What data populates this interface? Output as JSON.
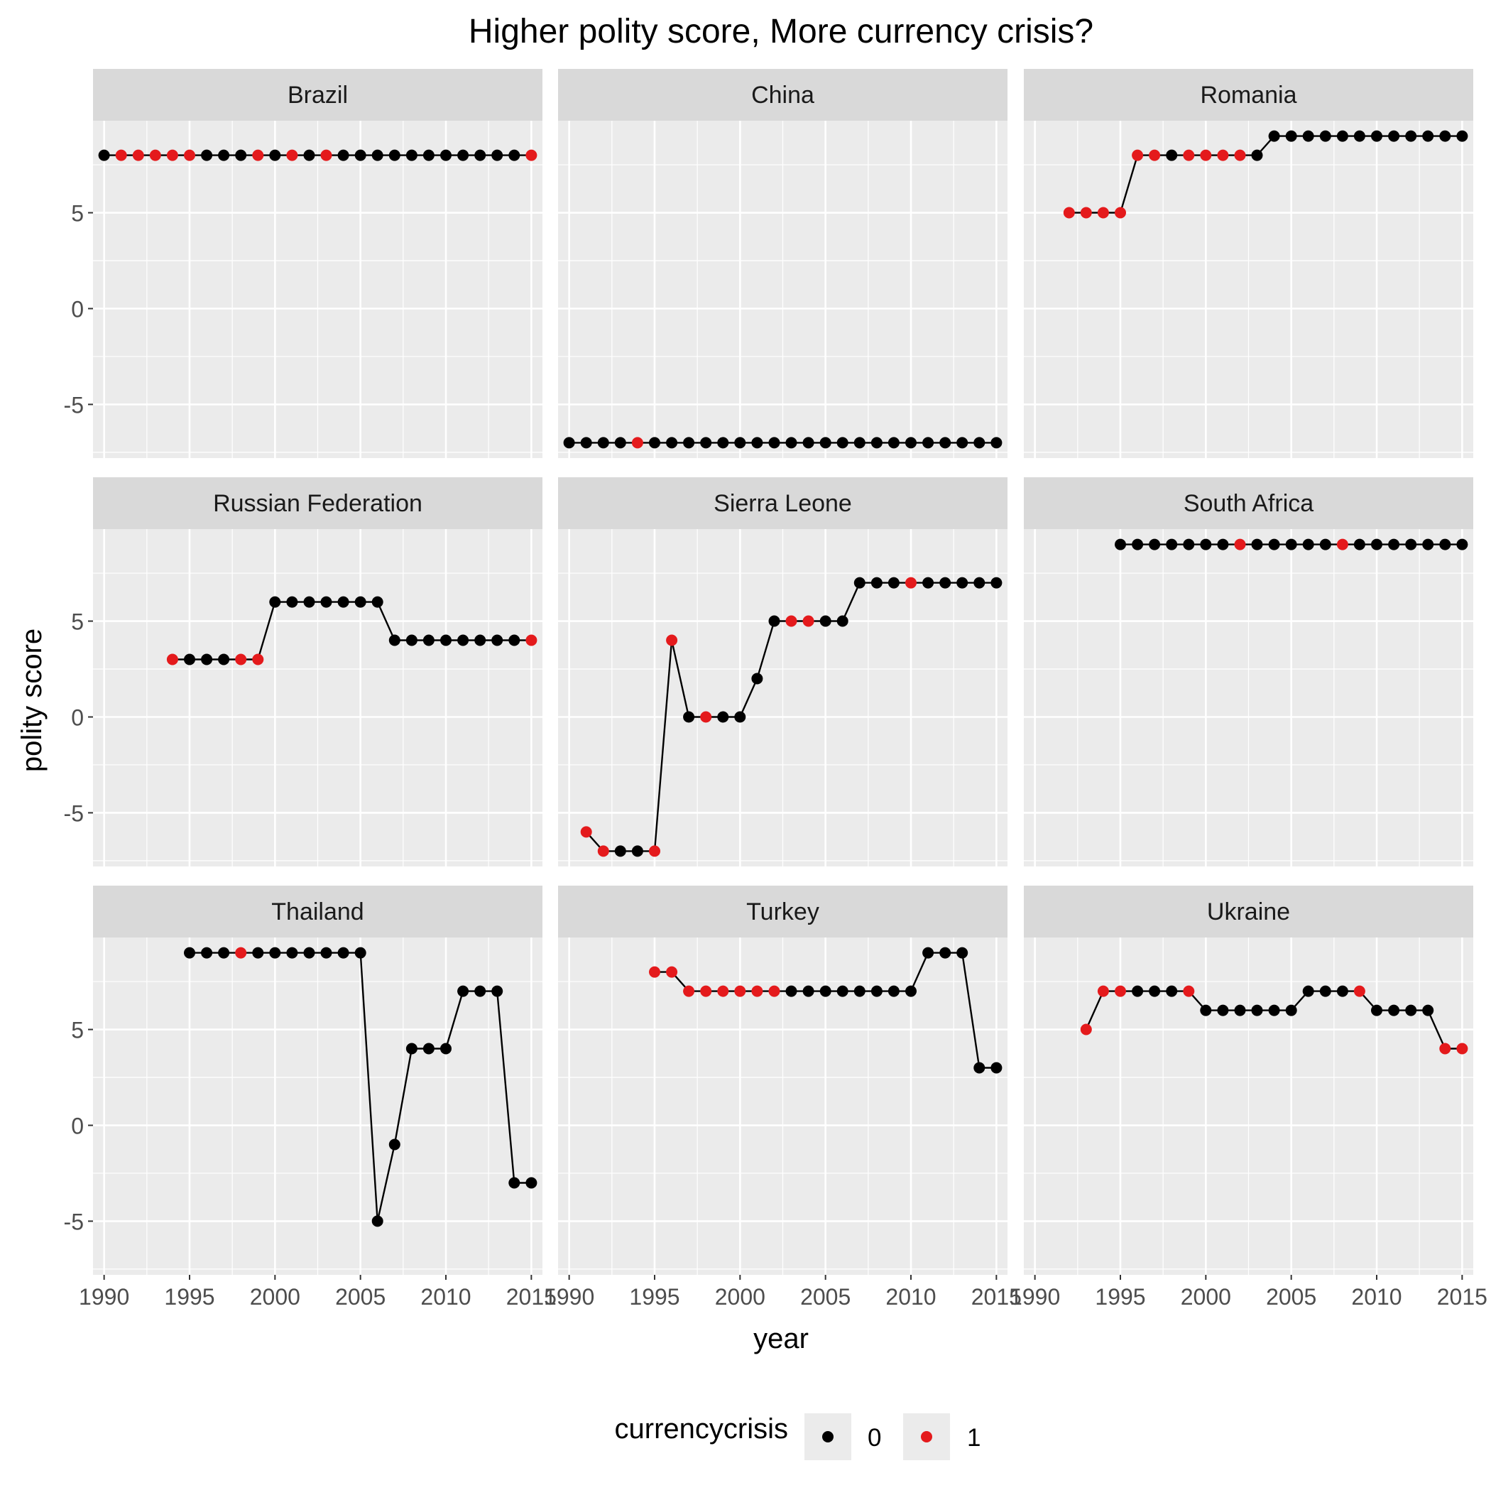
{
  "chart_data": {
    "type": "line",
    "title": "Higher polity score, More currency crisis?",
    "xlabel": "year",
    "ylabel": "polity score",
    "x_ticks": [
      1990,
      1995,
      2000,
      2005,
      2010,
      2015
    ],
    "y_ticks": [
      5,
      0,
      -5
    ],
    "xlim": [
      1989.35,
      2015.65
    ],
    "ylim": [
      -7.8,
      9.8
    ],
    "grid": true,
    "legend": {
      "title": "currencycrisis",
      "position": "bottom",
      "entries": [
        {
          "label": "0",
          "color": "#000000"
        },
        {
          "label": "1",
          "color": "#e41a1c"
        }
      ]
    },
    "panels": [
      {
        "name": "Brazil",
        "start_year": 1990,
        "scores": [
          8,
          8,
          8,
          8,
          8,
          8,
          8,
          8,
          8,
          8,
          8,
          8,
          8,
          8,
          8,
          8,
          8,
          8,
          8,
          8,
          8,
          8,
          8,
          8,
          8,
          8
        ],
        "crisis": [
          0,
          1,
          1,
          1,
          1,
          1,
          0,
          0,
          0,
          1,
          0,
          1,
          0,
          1,
          0,
          0,
          0,
          0,
          0,
          0,
          0,
          0,
          0,
          0,
          0,
          1
        ]
      },
      {
        "name": "China",
        "start_year": 1990,
        "scores": [
          -7,
          -7,
          -7,
          -7,
          -7,
          -7,
          -7,
          -7,
          -7,
          -7,
          -7,
          -7,
          -7,
          -7,
          -7,
          -7,
          -7,
          -7,
          -7,
          -7,
          -7,
          -7,
          -7,
          -7,
          -7,
          -7
        ],
        "crisis": [
          0,
          0,
          0,
          0,
          1,
          0,
          0,
          0,
          0,
          0,
          0,
          0,
          0,
          0,
          0,
          0,
          0,
          0,
          0,
          0,
          0,
          0,
          0,
          0,
          0,
          0
        ]
      },
      {
        "name": "Romania",
        "start_year": 1992,
        "scores": [
          5,
          5,
          5,
          5,
          8,
          8,
          8,
          8,
          8,
          8,
          8,
          8,
          9,
          9,
          9,
          9,
          9,
          9,
          9,
          9,
          9,
          9,
          9,
          9
        ],
        "crisis": [
          1,
          1,
          1,
          1,
          1,
          1,
          0,
          1,
          1,
          1,
          1,
          0,
          0,
          0,
          0,
          0,
          0,
          0,
          0,
          0,
          0,
          0,
          0,
          0
        ]
      },
      {
        "name": "Russian Federation",
        "start_year": 1994,
        "scores": [
          3,
          3,
          3,
          3,
          3,
          3,
          6,
          6,
          6,
          6,
          6,
          6,
          6,
          4,
          4,
          4,
          4,
          4,
          4,
          4,
          4,
          4
        ],
        "crisis": [
          1,
          0,
          0,
          0,
          1,
          1,
          0,
          0,
          0,
          0,
          0,
          0,
          0,
          0,
          0,
          0,
          0,
          0,
          0,
          0,
          0,
          1
        ]
      },
      {
        "name": "Sierra Leone",
        "start_year": 1991,
        "scores": [
          -6,
          -7,
          -7,
          -7,
          -7,
          4,
          0,
          0,
          0,
          0,
          2,
          5,
          5,
          5,
          5,
          5,
          7,
          7,
          7,
          7,
          7,
          7,
          7,
          7,
          7
        ],
        "crisis": [
          1,
          1,
          0,
          0,
          1,
          1,
          0,
          1,
          0,
          0,
          0,
          0,
          1,
          1,
          0,
          0,
          0,
          0,
          0,
          1,
          0,
          0,
          0,
          0,
          0
        ]
      },
      {
        "name": "South Africa",
        "start_year": 1995,
        "scores": [
          9,
          9,
          9,
          9,
          9,
          9,
          9,
          9,
          9,
          9,
          9,
          9,
          9,
          9,
          9,
          9,
          9,
          9,
          9,
          9,
          9
        ],
        "crisis": [
          0,
          0,
          0,
          0,
          0,
          0,
          0,
          1,
          0,
          0,
          0,
          0,
          0,
          1,
          0,
          0,
          0,
          0,
          0,
          0,
          0
        ]
      },
      {
        "name": "Thailand",
        "start_year": 1995,
        "scores": [
          9,
          9,
          9,
          9,
          9,
          9,
          9,
          9,
          9,
          9,
          9,
          -5,
          -1,
          4,
          4,
          4,
          7,
          7,
          7,
          -3,
          -3
        ],
        "crisis": [
          0,
          0,
          0,
          1,
          0,
          0,
          0,
          0,
          0,
          0,
          0,
          0,
          0,
          0,
          0,
          0,
          0,
          0,
          0,
          0,
          0
        ]
      },
      {
        "name": "Turkey",
        "start_year": 1995,
        "scores": [
          8,
          8,
          7,
          7,
          7,
          7,
          7,
          7,
          7,
          7,
          7,
          7,
          7,
          7,
          7,
          7,
          9,
          9,
          9,
          3,
          3
        ],
        "crisis": [
          1,
          1,
          1,
          1,
          1,
          1,
          1,
          1,
          0,
          0,
          0,
          0,
          0,
          0,
          0,
          0,
          0,
          0,
          0,
          0,
          0
        ]
      },
      {
        "name": "Ukraine",
        "start_year": 1993,
        "scores": [
          5,
          7,
          7,
          7,
          7,
          7,
          7,
          6,
          6,
          6,
          6,
          6,
          6,
          7,
          7,
          7,
          7,
          6,
          6,
          6,
          6,
          4,
          4
        ],
        "crisis": [
          1,
          1,
          1,
          0,
          0,
          0,
          1,
          0,
          0,
          0,
          0,
          0,
          0,
          0,
          0,
          0,
          1,
          0,
          0,
          0,
          0,
          1,
          1
        ]
      }
    ]
  }
}
